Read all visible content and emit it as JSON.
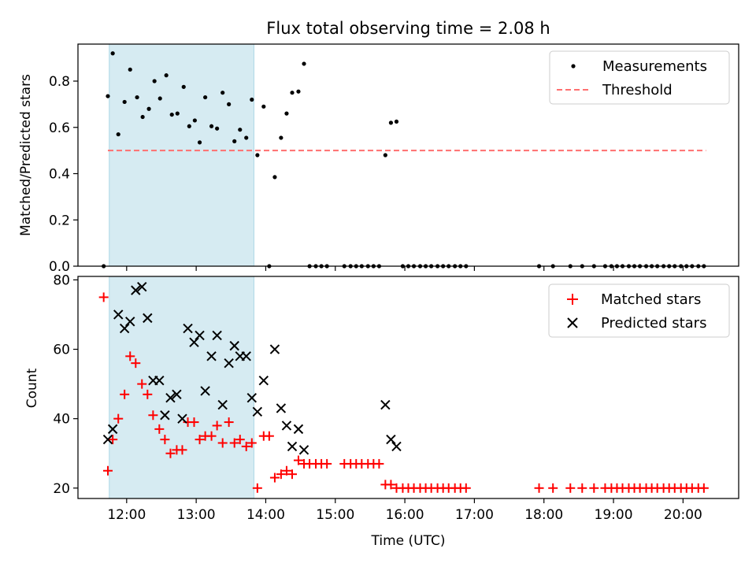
{
  "figure": {
    "title": "Flux total observing time = 2.08 h",
    "xlabel": "Time (UTC)",
    "x_ticks": [
      "12:00",
      "13:00",
      "14:00",
      "15:00",
      "16:00",
      "17:00",
      "18:00",
      "19:00",
      "20:00"
    ],
    "x_tick_hours": [
      12,
      13,
      14,
      15,
      16,
      17,
      18,
      19,
      20
    ],
    "shaded_interval_hours": [
      11.75,
      13.83
    ],
    "shade_color": "#add8e6"
  },
  "chart_data": [
    {
      "type": "scatter",
      "ylabel": "Matched/Predicted stars",
      "xlim": [
        11.3,
        20.8
      ],
      "ylim": [
        0,
        0.96
      ],
      "y_ticks": [
        "0.0",
        "0.2",
        "0.4",
        "0.6",
        "0.8"
      ],
      "y_tick_values": [
        0,
        0.2,
        0.4,
        0.6,
        0.8
      ],
      "legend": {
        "placement": "upper right",
        "entries": [
          "Measurements",
          "Threshold"
        ]
      },
      "threshold": {
        "name": "Threshold",
        "value": 0.5,
        "x_range": [
          11.73,
          20.33
        ],
        "color": "#ff6f6f",
        "style": "dashed"
      },
      "series": [
        {
          "name": "Measurements",
          "marker": "dot",
          "color": "#000000",
          "points": [
            [
              11.67,
              0.0
            ],
            [
              11.73,
              0.735
            ],
            [
              11.8,
              0.92
            ],
            [
              11.88,
              0.57
            ],
            [
              11.97,
              0.71
            ],
            [
              12.05,
              0.85
            ],
            [
              12.15,
              0.73
            ],
            [
              12.23,
              0.645
            ],
            [
              12.32,
              0.68
            ],
            [
              12.4,
              0.8
            ],
            [
              12.48,
              0.725
            ],
            [
              12.57,
              0.825
            ],
            [
              12.65,
              0.655
            ],
            [
              12.73,
              0.66
            ],
            [
              12.82,
              0.775
            ],
            [
              12.9,
              0.605
            ],
            [
              12.98,
              0.63
            ],
            [
              13.05,
              0.535
            ],
            [
              13.13,
              0.73
            ],
            [
              13.22,
              0.605
            ],
            [
              13.3,
              0.595
            ],
            [
              13.38,
              0.75
            ],
            [
              13.47,
              0.7
            ],
            [
              13.55,
              0.54
            ],
            [
              13.63,
              0.59
            ],
            [
              13.72,
              0.555
            ],
            [
              13.8,
              0.72
            ],
            [
              13.88,
              0.48
            ],
            [
              13.97,
              0.69
            ],
            [
              14.05,
              0.0
            ],
            [
              14.13,
              0.385
            ],
            [
              14.22,
              0.555
            ],
            [
              14.3,
              0.66
            ],
            [
              14.38,
              0.75
            ],
            [
              14.47,
              0.755
            ],
            [
              14.55,
              0.875
            ],
            [
              14.63,
              0.0
            ],
            [
              14.72,
              0.0
            ],
            [
              14.8,
              0.0
            ],
            [
              14.88,
              0.0
            ],
            [
              15.13,
              0.0
            ],
            [
              15.22,
              0.0
            ],
            [
              15.3,
              0.0
            ],
            [
              15.38,
              0.0
            ],
            [
              15.47,
              0.0
            ],
            [
              15.55,
              0.0
            ],
            [
              15.63,
              0.0
            ],
            [
              15.72,
              0.48
            ],
            [
              15.8,
              0.62
            ],
            [
              15.88,
              0.625
            ],
            [
              15.97,
              0.0
            ],
            [
              16.05,
              0.0
            ],
            [
              16.13,
              0.0
            ],
            [
              16.22,
              0.0
            ],
            [
              16.3,
              0.0
            ],
            [
              16.38,
              0.0
            ],
            [
              16.47,
              0.0
            ],
            [
              16.55,
              0.0
            ],
            [
              16.63,
              0.0
            ],
            [
              16.72,
              0.0
            ],
            [
              16.8,
              0.0
            ],
            [
              16.88,
              0.0
            ],
            [
              17.93,
              0.0
            ],
            [
              18.13,
              0.0
            ],
            [
              18.38,
              0.0
            ],
            [
              18.55,
              0.0
            ],
            [
              18.72,
              0.0
            ],
            [
              18.88,
              0.0
            ],
            [
              18.97,
              0.0
            ],
            [
              19.05,
              0.0
            ],
            [
              19.13,
              0.0
            ],
            [
              19.22,
              0.0
            ],
            [
              19.3,
              0.0
            ],
            [
              19.38,
              0.0
            ],
            [
              19.47,
              0.0
            ],
            [
              19.55,
              0.0
            ],
            [
              19.63,
              0.0
            ],
            [
              19.72,
              0.0
            ],
            [
              19.8,
              0.0
            ],
            [
              19.88,
              0.0
            ],
            [
              19.97,
              0.0
            ],
            [
              20.05,
              0.0
            ],
            [
              20.13,
              0.0
            ],
            [
              20.22,
              0.0
            ],
            [
              20.3,
              0.0
            ]
          ]
        }
      ]
    },
    {
      "type": "scatter",
      "ylabel": "Count",
      "xlim": [
        11.3,
        20.8
      ],
      "ylim": [
        17,
        81
      ],
      "y_ticks": [
        "20",
        "40",
        "60",
        "80"
      ],
      "y_tick_values": [
        20,
        40,
        60,
        80
      ],
      "legend": {
        "placement": "upper right",
        "entries": [
          "Matched stars",
          "Predicted stars"
        ]
      },
      "series": [
        {
          "name": "Matched stars",
          "marker": "plus",
          "color": "#ff0000",
          "points": [
            [
              11.67,
              75
            ],
            [
              11.73,
              25
            ],
            [
              11.8,
              34
            ],
            [
              11.88,
              40
            ],
            [
              11.97,
              47
            ],
            [
              12.05,
              58
            ],
            [
              12.13,
              56
            ],
            [
              12.22,
              50
            ],
            [
              12.3,
              47
            ],
            [
              12.38,
              41
            ],
            [
              12.47,
              37
            ],
            [
              12.55,
              34
            ],
            [
              12.63,
              30
            ],
            [
              12.72,
              31
            ],
            [
              12.8,
              31
            ],
            [
              12.88,
              39
            ],
            [
              12.97,
              39
            ],
            [
              13.05,
              34
            ],
            [
              13.13,
              35
            ],
            [
              13.22,
              35
            ],
            [
              13.3,
              38
            ],
            [
              13.38,
              33
            ],
            [
              13.47,
              39
            ],
            [
              13.55,
              33
            ],
            [
              13.63,
              34
            ],
            [
              13.72,
              32
            ],
            [
              13.8,
              33
            ],
            [
              13.88,
              20
            ],
            [
              13.97,
              35
            ],
            [
              14.05,
              35
            ],
            [
              14.13,
              23
            ],
            [
              14.22,
              24
            ],
            [
              14.3,
              25
            ],
            [
              14.38,
              24
            ],
            [
              14.47,
              28
            ],
            [
              14.55,
              27
            ],
            [
              14.63,
              27
            ],
            [
              14.72,
              27
            ],
            [
              14.8,
              27
            ],
            [
              14.88,
              27
            ],
            [
              15.13,
              27
            ],
            [
              15.22,
              27
            ],
            [
              15.3,
              27
            ],
            [
              15.38,
              27
            ],
            [
              15.47,
              27
            ],
            [
              15.55,
              27
            ],
            [
              15.63,
              27
            ],
            [
              15.72,
              21
            ],
            [
              15.8,
              21
            ],
            [
              15.88,
              20
            ],
            [
              15.97,
              20
            ],
            [
              16.05,
              20
            ],
            [
              16.13,
              20
            ],
            [
              16.22,
              20
            ],
            [
              16.3,
              20
            ],
            [
              16.38,
              20
            ],
            [
              16.47,
              20
            ],
            [
              16.55,
              20
            ],
            [
              16.63,
              20
            ],
            [
              16.72,
              20
            ],
            [
              16.8,
              20
            ],
            [
              16.88,
              20
            ],
            [
              17.93,
              20
            ],
            [
              18.13,
              20
            ],
            [
              18.38,
              20
            ],
            [
              18.55,
              20
            ],
            [
              18.72,
              20
            ],
            [
              18.88,
              20
            ],
            [
              18.97,
              20
            ],
            [
              19.05,
              20
            ],
            [
              19.13,
              20
            ],
            [
              19.22,
              20
            ],
            [
              19.3,
              20
            ],
            [
              19.38,
              20
            ],
            [
              19.47,
              20
            ],
            [
              19.55,
              20
            ],
            [
              19.63,
              20
            ],
            [
              19.72,
              20
            ],
            [
              19.8,
              20
            ],
            [
              19.88,
              20
            ],
            [
              19.97,
              20
            ],
            [
              20.05,
              20
            ],
            [
              20.13,
              20
            ],
            [
              20.22,
              20
            ],
            [
              20.3,
              20
            ]
          ]
        },
        {
          "name": "Predicted stars",
          "marker": "x",
          "color": "#000000",
          "points": [
            [
              11.73,
              34
            ],
            [
              11.8,
              37
            ],
            [
              11.88,
              70
            ],
            [
              11.97,
              66
            ],
            [
              12.05,
              68
            ],
            [
              12.13,
              77
            ],
            [
              12.22,
              78
            ],
            [
              12.3,
              69
            ],
            [
              12.38,
              51
            ],
            [
              12.47,
              51
            ],
            [
              12.55,
              41
            ],
            [
              12.63,
              46
            ],
            [
              12.72,
              47
            ],
            [
              12.8,
              40
            ],
            [
              12.88,
              66
            ],
            [
              12.97,
              62
            ],
            [
              13.05,
              64
            ],
            [
              13.13,
              48
            ],
            [
              13.22,
              58
            ],
            [
              13.3,
              64
            ],
            [
              13.38,
              44
            ],
            [
              13.47,
              56
            ],
            [
              13.55,
              61
            ],
            [
              13.63,
              58
            ],
            [
              13.72,
              58
            ],
            [
              13.8,
              46
            ],
            [
              13.88,
              42
            ],
            [
              13.97,
              51
            ],
            [
              14.13,
              60
            ],
            [
              14.22,
              43
            ],
            [
              14.3,
              38
            ],
            [
              14.38,
              32
            ],
            [
              14.47,
              37
            ],
            [
              14.55,
              31
            ],
            [
              15.72,
              44
            ],
            [
              15.8,
              34
            ],
            [
              15.88,
              32
            ]
          ]
        }
      ]
    }
  ]
}
